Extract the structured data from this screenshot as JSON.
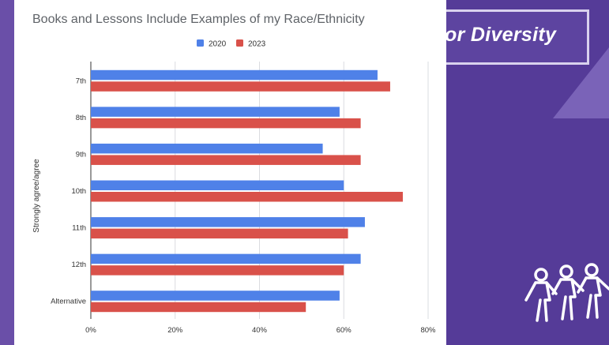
{
  "slide": {
    "banner_text": "or Diversity",
    "colors": {
      "background": "#6a4fa8",
      "banner_border": "#d9d2ee"
    },
    "icon": "people-group-icon"
  },
  "chart_data": {
    "type": "bar",
    "orientation": "horizontal",
    "title": "Books and Lessons Include Examples of my Race/Ethnicity",
    "xlabel": "",
    "ylabel": "Strongly agree/agree",
    "categories": [
      "7th",
      "8th",
      "9th",
      "10th",
      "11th",
      "12th",
      "Alternative"
    ],
    "series": [
      {
        "name": "2020",
        "color": "#4f81e8",
        "values": [
          0.68,
          0.59,
          0.55,
          0.6,
          0.65,
          0.64,
          0.59
        ]
      },
      {
        "name": "2023",
        "color": "#d9514a",
        "values": [
          0.71,
          0.64,
          0.64,
          0.74,
          0.61,
          0.6,
          0.51
        ]
      }
    ],
    "xlim": [
      0,
      0.8
    ],
    "xticks": [
      "0%",
      "20%",
      "40%",
      "60%",
      "80%"
    ],
    "grid": true,
    "legend": "top"
  }
}
